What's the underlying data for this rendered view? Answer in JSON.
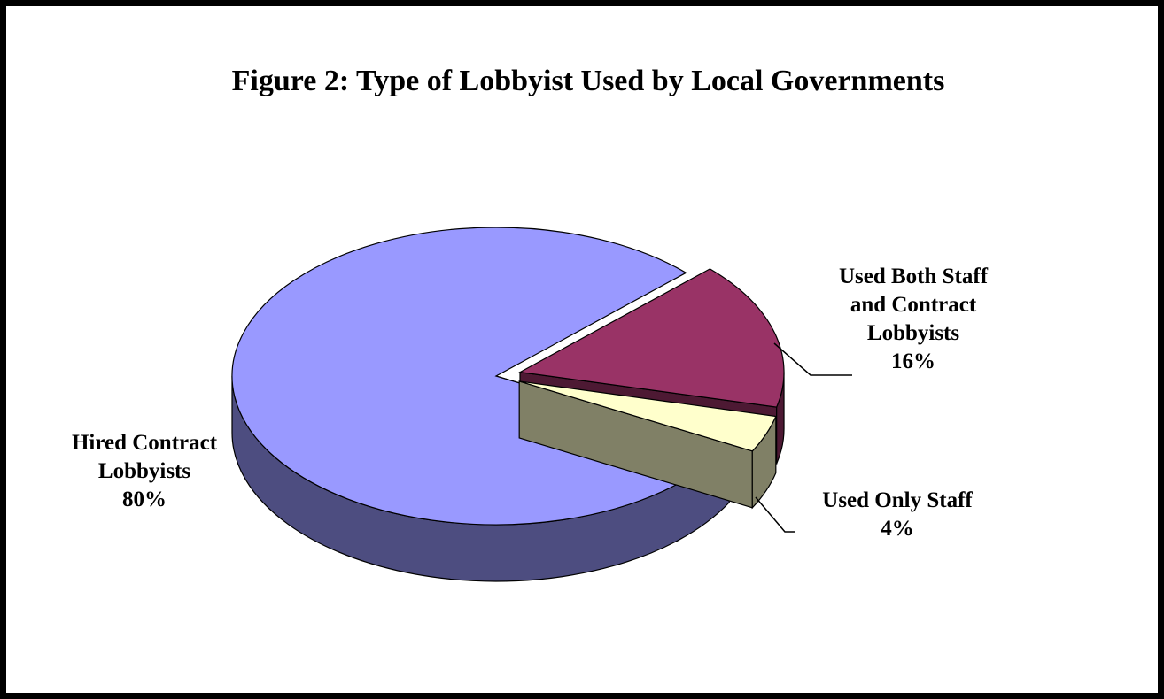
{
  "chart_data": {
    "type": "pie",
    "title": "Figure 2:  Type of Lobbyist Used by Local Governments",
    "slices": [
      {
        "name": "Hired Contract Lobbyists",
        "value": 80,
        "value_label": "80%",
        "label_lines": [
          "Hired Contract",
          "Lobbyists"
        ],
        "color_top": "#9999ff",
        "color_side": "#4d4d80"
      },
      {
        "name": "Used Both Staff and Contract Lobbyists",
        "value": 16,
        "value_label": "16%",
        "label_lines": [
          "Used Both Staff",
          "and Contract",
          "Lobbyists"
        ],
        "color_top": "#993366",
        "color_side": "#4d1933"
      },
      {
        "name": "Used Only Staff",
        "value": 4,
        "value_label": "4%",
        "label_lines": [
          "Used Only Staff"
        ],
        "color_top": "#ffffcc",
        "color_side": "#808066"
      }
    ],
    "style": "3d-exploded"
  }
}
